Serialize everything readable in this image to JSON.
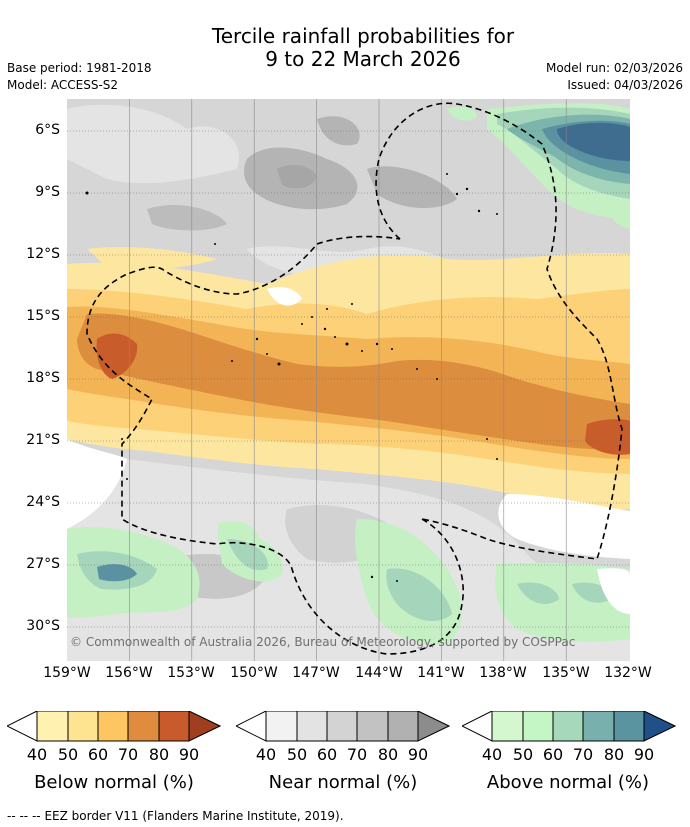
{
  "header": {
    "title_line1": "Tercile rainfall probabilities for",
    "title_line2": "9 to 22 March 2026",
    "base_period": "Base period: 1981-2018",
    "model": "Model: ACCESS-S2",
    "model_run": "Model run: 02/03/2026",
    "issued": "Issued: 04/03/2026"
  },
  "map": {
    "lat_labels": [
      "6°S",
      "9°S",
      "12°S",
      "15°S",
      "18°S",
      "21°S",
      "24°S",
      "27°S",
      "30°S"
    ],
    "lon_labels": [
      "159°W",
      "156°W",
      "153°W",
      "150°W",
      "147°W",
      "144°W",
      "141°W",
      "138°W",
      "135°W",
      "132°W"
    ],
    "copyright": "© Commonwealth of Australia 2026, Bureau of Meteorology, supported by COSPPac"
  },
  "colorbars": [
    {
      "title": "Below normal (%)",
      "ticks": [
        "40",
        "50",
        "60",
        "70",
        "80",
        "90"
      ],
      "colors": [
        "#fff1b0",
        "#fee391",
        "#fdc662",
        "#e08c3e",
        "#c85a2c",
        "#a84a25"
      ],
      "under": "#ffffff",
      "over": "#a03e20"
    },
    {
      "title": "Near normal (%)",
      "ticks": [
        "40",
        "50",
        "60",
        "70",
        "80",
        "90"
      ],
      "colors": [
        "#f2f2f2",
        "#e3e3e3",
        "#d3d3d3",
        "#c2c2c2",
        "#b1b1b1",
        "#a0a0a0"
      ],
      "under": "#ffffff",
      "over": "#8c8c8c"
    },
    {
      "title": "Above normal (%)",
      "ticks": [
        "40",
        "50",
        "60",
        "70",
        "80",
        "90"
      ],
      "colors": [
        "#d4f7d0",
        "#c4f5c4",
        "#a6d9bb",
        "#78b0ad",
        "#5a94a0",
        "#3a6a9a"
      ],
      "under": "#ffffff",
      "over": "#205088"
    }
  ],
  "footer": {
    "eez_dashes": "--  --  --",
    "eez_text": "EEZ border V11 (Flanders Marine Institute, 2019)."
  },
  "palette": {
    "below": [
      "#fee9a0",
      "#fdd47a",
      "#f5b354",
      "#dc8c3c",
      "#c55a2a"
    ],
    "near": [
      "#e3e3e3",
      "#d2d2d2",
      "#bdbdbd",
      "#a8a8a8"
    ],
    "above": [
      "#c8f5c8",
      "#a8dbbf",
      "#7cb7ad",
      "#5a92a2",
      "#3d6e92"
    ]
  }
}
